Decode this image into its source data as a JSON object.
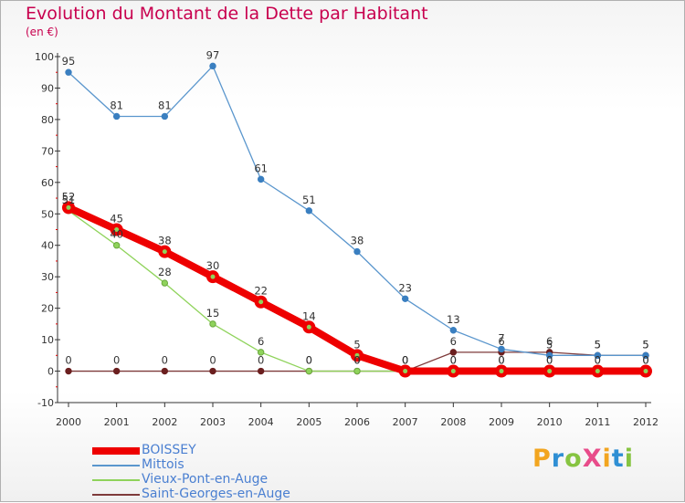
{
  "colors": {
    "title": "#c8004e",
    "legend_text": "#4a7fd1"
  },
  "brand": {
    "text": "ProXiti",
    "letters": [
      {
        "ch": "P",
        "color": "#f2a51f"
      },
      {
        "ch": "r",
        "color": "#2f8fd4"
      },
      {
        "ch": "o",
        "color": "#86c441"
      },
      {
        "ch": "X",
        "color": "#e84c8a"
      },
      {
        "ch": "i",
        "color": "#f2a51f"
      },
      {
        "ch": "t",
        "color": "#2f8fd4"
      },
      {
        "ch": "i",
        "color": "#86c441"
      }
    ]
  },
  "chart_data": {
    "type": "line",
    "title": "Evolution du Montant de la Dette par Habitant",
    "subtitle": "(en €)",
    "x": [
      2000,
      2001,
      2002,
      2003,
      2004,
      2005,
      2006,
      2007,
      2008,
      2009,
      2010,
      2011,
      2012
    ],
    "ylim": [
      -10,
      100
    ],
    "yticks": [
      -10,
      0,
      10,
      20,
      30,
      40,
      50,
      60,
      70,
      80,
      90,
      100
    ],
    "grid": false,
    "legend_position": "bottom-left",
    "series": [
      {
        "name": "BOISSEY",
        "color": "#ee0000",
        "values": [
          52,
          45,
          38,
          30,
          22,
          14,
          5,
          0,
          0,
          0,
          0,
          0,
          0
        ]
      },
      {
        "name": "Mittois",
        "color": "#5a96cd",
        "values": [
          95,
          81,
          81,
          97,
          61,
          51,
          38,
          23,
          13,
          7,
          5,
          5,
          5
        ]
      },
      {
        "name": "Vieux-Pont-en-Auge",
        "color": "#8fd35b",
        "values": [
          51,
          40,
          28,
          15,
          6,
          0,
          0,
          0,
          0,
          0,
          0,
          0,
          0
        ]
      },
      {
        "name": "Saint-Georges-en-Auge",
        "color": "#7e3a3a",
        "values": [
          0,
          0,
          0,
          0,
          0,
          0,
          0,
          0,
          6,
          6,
          6,
          5,
          5
        ]
      }
    ]
  }
}
